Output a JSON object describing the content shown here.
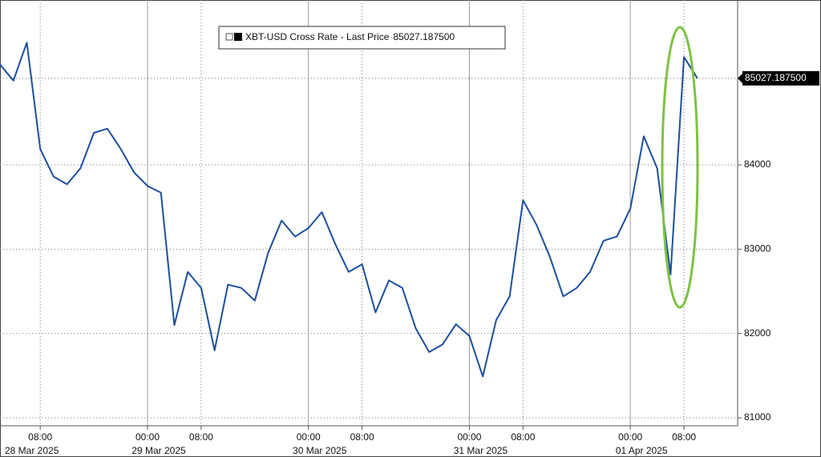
{
  "chart_data": {
    "type": "line",
    "series": [
      {
        "name": "XBT-USD Cross Rate - Last Price",
        "color": "#1c4f9c",
        "values": [
          85190,
          85000,
          85450,
          84190,
          83860,
          83770,
          83960,
          84380,
          84430,
          84190,
          83910,
          83750,
          83670,
          82100,
          82730,
          82540,
          81800,
          82580,
          82540,
          82390,
          82960,
          83340,
          83150,
          83250,
          83440,
          83060,
          82730,
          82820,
          82250,
          82630,
          82540,
          82060,
          81780,
          81870,
          82110,
          81970,
          81490,
          82160,
          82440,
          83580,
          83290,
          82910,
          82440,
          82540,
          82730,
          83100,
          83150,
          83480,
          84340,
          83960,
          82700,
          85280,
          85027.1875
        ]
      }
    ],
    "x": [
      "2025-03-28T02:00",
      "2025-03-28T04:00",
      "2025-03-28T06:00",
      "2025-03-28T08:00",
      "2025-03-28T10:00",
      "2025-03-28T12:00",
      "2025-03-28T14:00",
      "2025-03-28T16:00",
      "2025-03-28T18:00",
      "2025-03-28T20:00",
      "2025-03-28T22:00",
      "2025-03-29T00:00",
      "2025-03-29T02:00",
      "2025-03-29T04:00",
      "2025-03-29T06:00",
      "2025-03-29T08:00",
      "2025-03-29T10:00",
      "2025-03-29T12:00",
      "2025-03-29T14:00",
      "2025-03-29T16:00",
      "2025-03-29T18:00",
      "2025-03-29T20:00",
      "2025-03-29T22:00",
      "2025-03-30T00:00",
      "2025-03-30T02:00",
      "2025-03-30T04:00",
      "2025-03-30T06:00",
      "2025-03-30T08:00",
      "2025-03-30T10:00",
      "2025-03-30T12:00",
      "2025-03-30T14:00",
      "2025-03-30T16:00",
      "2025-03-30T18:00",
      "2025-03-30T20:00",
      "2025-03-30T22:00",
      "2025-03-31T00:00",
      "2025-03-31T02:00",
      "2025-03-31T04:00",
      "2025-03-31T06:00",
      "2025-03-31T08:00",
      "2025-03-31T10:00",
      "2025-03-31T12:00",
      "2025-03-31T14:00",
      "2025-03-31T16:00",
      "2025-03-31T18:00",
      "2025-03-31T20:00",
      "2025-03-31T22:00",
      "2025-04-01T00:00",
      "2025-04-01T02:00",
      "2025-04-01T04:00",
      "2025-04-01T06:00",
      "2025-04-01T08:00",
      "2025-04-01T10:00"
    ],
    "xlim": [
      "2025-03-28T02:00",
      "2025-04-01T16:00"
    ],
    "xticks": [
      {
        "value": "2025-03-28T08:00",
        "label": "08:00"
      },
      {
        "value": "2025-03-29T00:00",
        "label": "00:00"
      },
      {
        "value": "2025-03-29T08:00",
        "label": "08:00"
      },
      {
        "value": "2025-03-30T00:00",
        "label": "00:00"
      },
      {
        "value": "2025-03-30T08:00",
        "label": "08:00"
      },
      {
        "value": "2025-03-31T00:00",
        "label": "00:00"
      },
      {
        "value": "2025-03-31T08:00",
        "label": "08:00"
      },
      {
        "value": "2025-04-01T00:00",
        "label": "00:00"
      },
      {
        "value": "2025-04-01T08:00",
        "label": "08:00"
      }
    ],
    "date_labels": [
      {
        "value": "2025-03-28T00:00",
        "label": "28 Mar 2025"
      },
      {
        "value": "2025-03-29T00:00",
        "label": "29 Mar 2025"
      },
      {
        "value": "2025-03-30T00:00",
        "label": "30 Mar 2025"
      },
      {
        "value": "2025-03-31T00:00",
        "label": "31 Mar 2025"
      },
      {
        "value": "2025-04-01T00:00",
        "label": "01 Apr 2025"
      }
    ],
    "ylim": [
      80905,
      85956
    ],
    "yticks": [
      81000,
      82000,
      83000,
      84000
    ],
    "last_price": {
      "value": 85027.1875,
      "label": "85027.187500"
    },
    "grid": true
  }
}
